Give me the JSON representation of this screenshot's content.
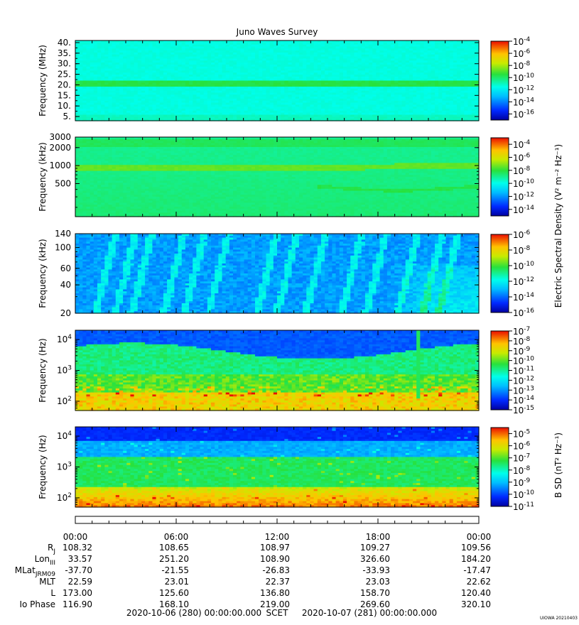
{
  "chart_data": {
    "type": "heatmap",
    "title": "Juno Waves Survey",
    "panels": [
      {
        "id": "hfr-high",
        "ylabel": "Frequency (MHz)",
        "yscale": "linear",
        "ylim": [
          3,
          41
        ],
        "yticks": [
          "5.",
          "10.",
          "15.",
          "20.",
          "25.",
          "30.",
          "35.",
          "40."
        ],
        "ytick_values": [
          5,
          10,
          15,
          20,
          25,
          30,
          35,
          40
        ],
        "colorbar_ticks": [
          "-4",
          "-6",
          "-8",
          "-10",
          "-12",
          "-14",
          "-16"
        ],
        "colorbar_values": [
          -4,
          -6,
          -8,
          -10,
          -12,
          -14,
          -16
        ],
        "colorbar_range": [
          -17,
          -4
        ]
      },
      {
        "id": "hfr-low",
        "ylabel": "Frequency (kHz)",
        "yscale": "log",
        "ylim": [
          140,
          3000
        ],
        "yticks": [
          "500",
          "1000",
          "2000",
          "3000"
        ],
        "ytick_values": [
          500,
          1000,
          2000,
          3000
        ],
        "colorbar_ticks": [
          "-4",
          "-6",
          "-8",
          "-10",
          "-12",
          "-14"
        ],
        "colorbar_values": [
          -4,
          -6,
          -8,
          -10,
          -12,
          -14
        ],
        "colorbar_range": [
          -15,
          -3
        ]
      },
      {
        "id": "lfr-high",
        "ylabel": "Frequency (kHz)",
        "yscale": "log",
        "ylim": [
          20,
          140
        ],
        "yticks": [
          "20",
          "40",
          "60",
          "100",
          "140"
        ],
        "ytick_values": [
          20,
          40,
          60,
          100,
          140
        ],
        "colorbar_ticks": [
          "-6",
          "-8",
          "-10",
          "-12",
          "-14",
          "-16"
        ],
        "colorbar_values": [
          -6,
          -8,
          -10,
          -12,
          -14,
          -16
        ],
        "colorbar_range": [
          -16,
          -6
        ]
      },
      {
        "id": "lfr-low",
        "ylabel": "Frequency (Hz)",
        "yscale": "log",
        "ylim": [
          50,
          20000
        ],
        "yticks": [
          "2",
          "3",
          "4"
        ],
        "ytick_values": [
          100,
          1000,
          10000
        ],
        "colorbar_ticks": [
          "-7",
          "-8",
          "-9",
          "-10",
          "-11",
          "-12",
          "-13",
          "-14",
          "-15"
        ],
        "colorbar_values": [
          -7,
          -8,
          -9,
          -10,
          -11,
          -12,
          -13,
          -14,
          -15
        ],
        "colorbar_range": [
          -15,
          -7
        ]
      },
      {
        "id": "magnetic",
        "ylabel": "Frequency (Hz)",
        "yscale": "log",
        "ylim": [
          50,
          20000
        ],
        "yticks": [
          "2",
          "3",
          "4"
        ],
        "ytick_values": [
          100,
          1000,
          10000
        ],
        "colorbar_ticks": [
          "-5",
          "-6",
          "-7",
          "-8",
          "-9",
          "-10",
          "-11"
        ],
        "colorbar_values": [
          -5,
          -6,
          -7,
          -8,
          -9,
          -10,
          -11
        ],
        "colorbar_range": [
          -11,
          -4.5
        ]
      }
    ],
    "colorbar_group_labels": {
      "electric": "Electric Spectral Density (V² m⁻² Hz⁻¹)",
      "magnetic": "B SD (nT² Hz⁻¹)"
    },
    "tick_base": "10",
    "ytick_base": "10",
    "x_ticks": [
      "00:00",
      "06:00",
      "12:00",
      "18:00",
      "00:00"
    ],
    "x_hours": [
      0,
      6,
      12,
      18,
      24
    ],
    "ephemeris": [
      {
        "label": "R",
        "sub": "J",
        "values": [
          "108.32",
          "108.65",
          "108.97",
          "109.27",
          "109.56"
        ]
      },
      {
        "label": "Lon",
        "sub": "III",
        "values": [
          "33.57",
          "251.20",
          "108.90",
          "326.60",
          "184.20"
        ]
      },
      {
        "label": "MLat",
        "sub": "JRM09",
        "values": [
          "-37.70",
          "-21.55",
          "-26.83",
          "-33.93",
          "-17.47"
        ]
      },
      {
        "label": "MLT",
        "sub": "",
        "values": [
          "22.59",
          "23.01",
          "22.37",
          "23.03",
          "22.62"
        ]
      },
      {
        "label": "L",
        "sub": "",
        "values": [
          "173.00",
          "125.60",
          "136.80",
          "158.70",
          "120.40"
        ]
      },
      {
        "label": "Io Phase",
        "sub": "",
        "values": [
          "116.90",
          "168.10",
          "219.00",
          "269.60",
          "320.10"
        ]
      }
    ],
    "footer": {
      "start": "2020-10-06 (280) 00:00:00.000",
      "scet": "SCET",
      "end": "2020-10-07 (281) 00:00:00.000"
    },
    "credit": "UIOWA 20210403"
  }
}
